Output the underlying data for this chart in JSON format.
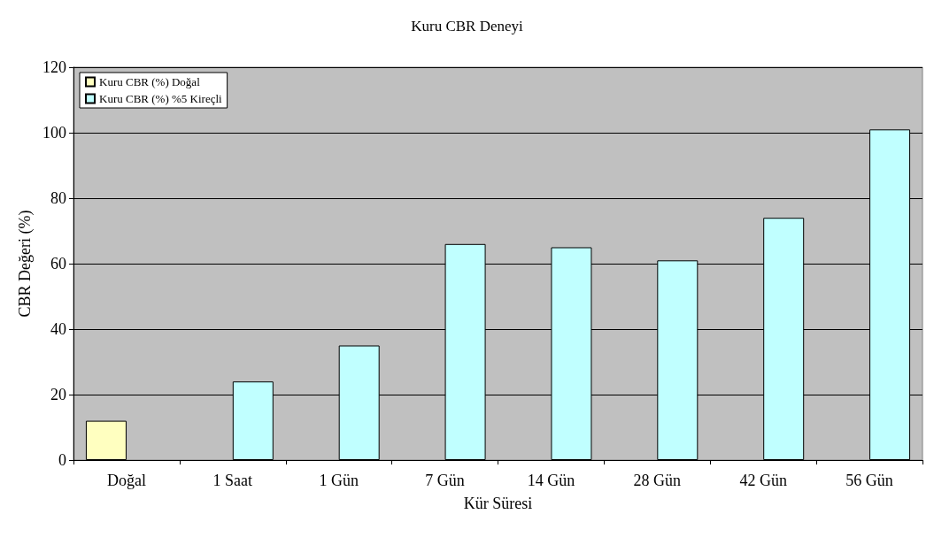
{
  "chart_data": {
    "type": "bar",
    "title": "Kuru CBR Deneyi",
    "xlabel": "Kür Süresi",
    "ylabel": "CBR Değeri (%)",
    "categories": [
      "Doğal",
      "1 Saat",
      "1 Gün",
      "7 Gün",
      "14 Gün",
      "28 Gün",
      "42 Gün",
      "56 Gün"
    ],
    "series": [
      {
        "name": "Kuru CBR (%) Doğal",
        "color": "#ffffc0",
        "values": [
          12,
          null,
          null,
          null,
          null,
          null,
          null,
          null
        ]
      },
      {
        "name": "Kuru CBR (%) %5 Kireçli",
        "color": "#c0ffff",
        "values": [
          null,
          24,
          35,
          66,
          65,
          61,
          74,
          101
        ]
      }
    ],
    "ylim": [
      0,
      120
    ],
    "yticks": [
      0,
      20,
      40,
      60,
      80,
      100,
      120
    ],
    "grid": "y",
    "legend": "top left"
  }
}
